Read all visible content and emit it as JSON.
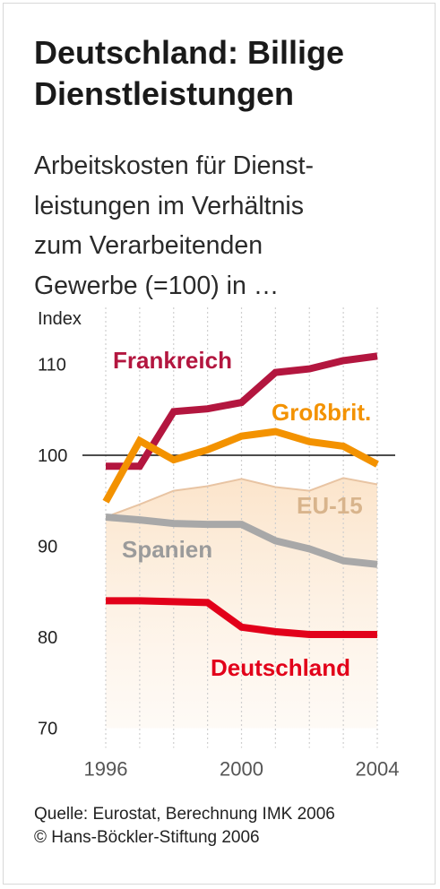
{
  "header": {
    "title_line1": "Deutschland: Billige",
    "title_line2": "Dienstleistungen",
    "subtitle_lines": [
      "Arbeitskosten für Dienst-",
      "leistungen im Verhältnis",
      "zum Verarbeitenden",
      "Gewerbe (=100) in …"
    ]
  },
  "footer": {
    "source": "Quelle: Eurostat, Berechnung IMK 2006",
    "copyright": "© Hans-Böckler-Stiftung 2006"
  },
  "chart_data": {
    "type": "line",
    "ylabel": "Index",
    "ylim": [
      70,
      112
    ],
    "xlim": [
      1996,
      2004
    ],
    "yticks": [
      70,
      80,
      90,
      100,
      110
    ],
    "xticks": [
      1996,
      2000,
      2004
    ],
    "reference_line": 100,
    "x": [
      1996,
      1997,
      1998,
      1999,
      2000,
      2001,
      2002,
      2003,
      2004
    ],
    "series": [
      {
        "name": "Frankreich",
        "color": "#b3163f",
        "values": [
          98.8,
          98.8,
          104.8,
          105.1,
          105.8,
          109.1,
          109.5,
          110.4,
          110.9
        ]
      },
      {
        "name": "Großbrit.",
        "color": "#f39200",
        "values": [
          94.9,
          101.6,
          99.5,
          100.6,
          102.1,
          102.6,
          101.5,
          101.0,
          99.0
        ]
      },
      {
        "name": "EU-15",
        "color": "#e8c4a3",
        "fill": "#fbe6cf",
        "label_color": "#d8b48c",
        "values": [
          93.2,
          94.6,
          96.1,
          96.6,
          97.4,
          96.5,
          96.1,
          97.5,
          96.8
        ]
      },
      {
        "name": "Spanien",
        "color": "#a8a8a8",
        "label_color": "#9b9b9b",
        "values": [
          93.2,
          92.9,
          92.5,
          92.4,
          92.4,
          90.6,
          89.7,
          88.4,
          88.0
        ]
      },
      {
        "name": "Deutschland",
        "color": "#e2001a",
        "values": [
          84.0,
          84.0,
          83.9,
          83.8,
          81.1,
          80.6,
          80.3,
          80.3,
          80.3
        ]
      }
    ]
  }
}
